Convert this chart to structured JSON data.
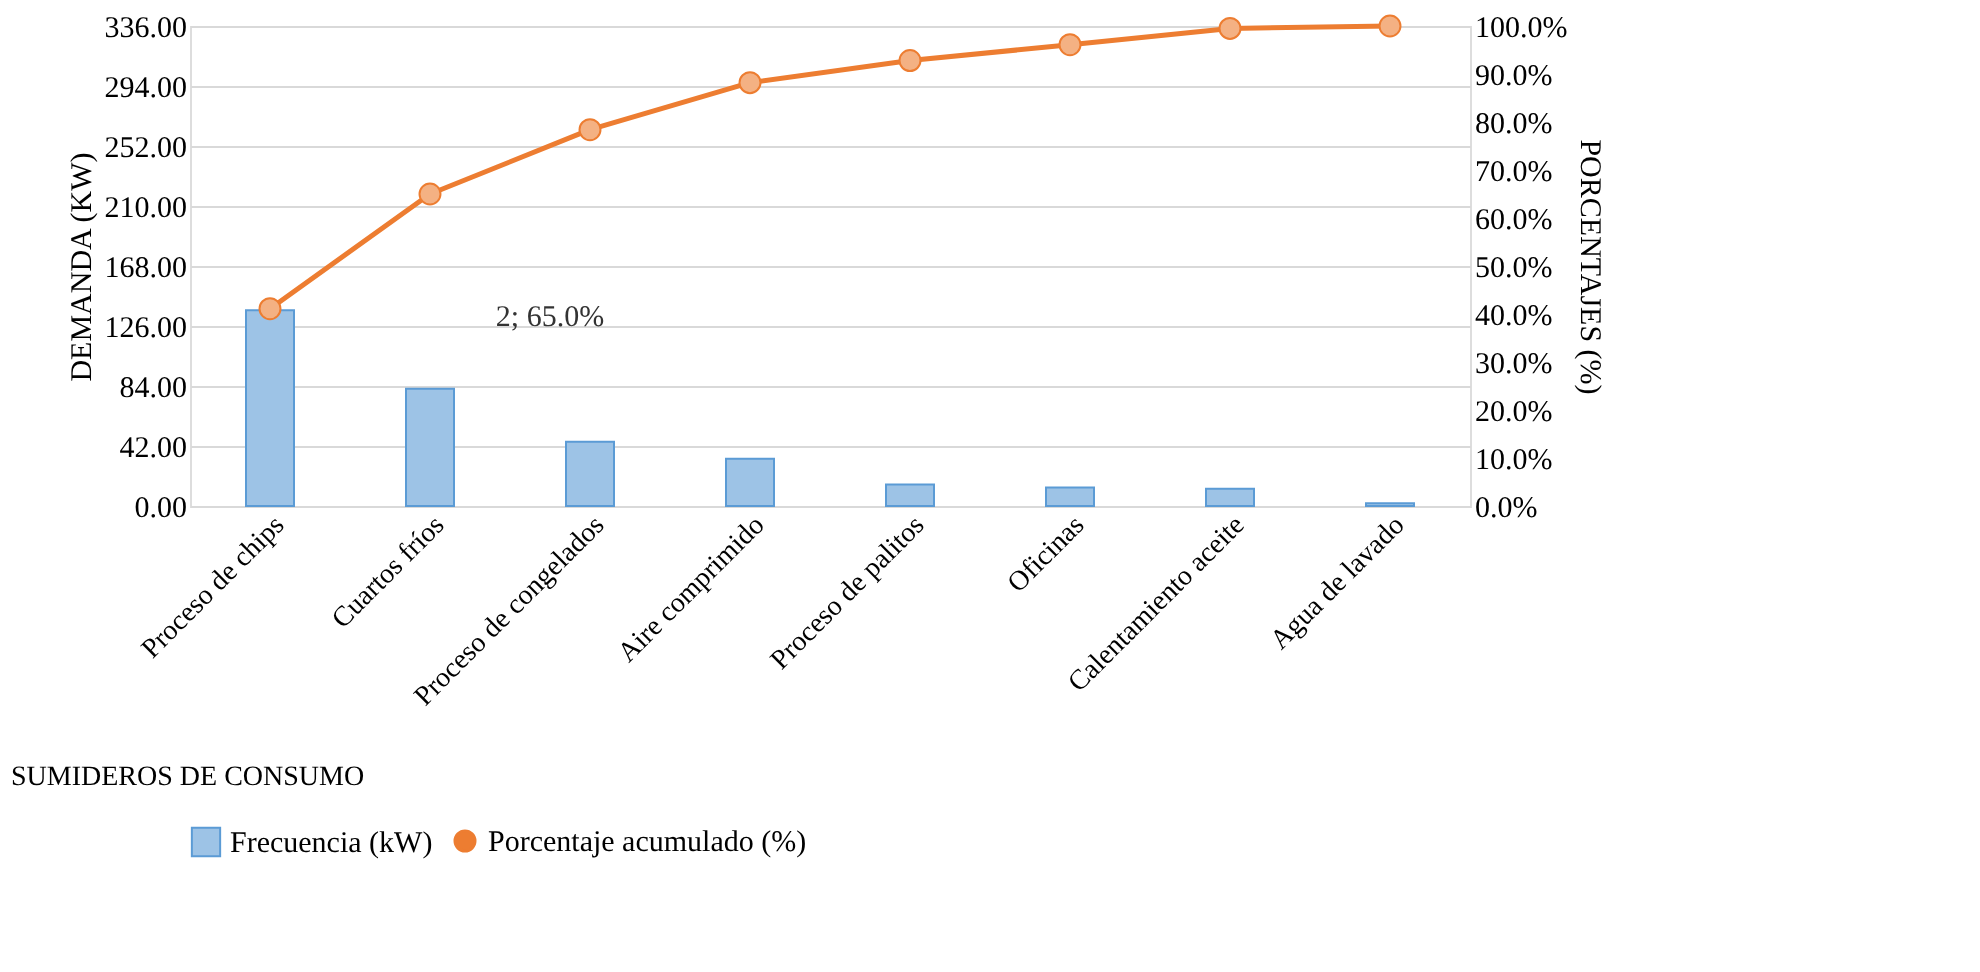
{
  "chart_data": {
    "type": "bar",
    "categories": [
      "Proceso de chips",
      "Cuartos fríos",
      "Proceso de congelados",
      "Aire comprimido",
      "Proceso de palitos",
      "Oficinas",
      "Calentamiento aceite",
      "Agua de lavado"
    ],
    "xlabel": "SUMIDEROS DE CONSUMO",
    "ylabel": "DEMANDA (KW)",
    "y2label": "PORCENTAJES (%)",
    "series": [
      {
        "name": "Frecuencia (kW)",
        "color": "#9dc3e6",
        "values": [
          137,
          82,
          45,
          33,
          15,
          13,
          12,
          2
        ]
      },
      {
        "name": "Porcentaje acumulado (%)",
        "type": "line",
        "axis": "y2",
        "color": "#ed7d31",
        "values": [
          41.1,
          65.0,
          78.4,
          88.2,
          92.8,
          96.1,
          99.5,
          100
        ]
      }
    ],
    "ylim": [
      0,
      336
    ],
    "yticks": [
      {
        "value": 0,
        "label": "0.00"
      },
      {
        "value": 42,
        "label": "42.00"
      },
      {
        "value": 84,
        "label": "84.00"
      },
      {
        "value": 126,
        "label": "126.00"
      },
      {
        "value": 168,
        "label": "168.00"
      },
      {
        "value": 210,
        "label": "210.00"
      },
      {
        "value": 252,
        "label": "252.00"
      },
      {
        "value": 294,
        "label": "294.00"
      },
      {
        "value": 336,
        "label": "336.00"
      }
    ],
    "y2lim": [
      0,
      100
    ],
    "y2ticks": [
      {
        "value": 0,
        "label": "0.0%"
      },
      {
        "value": 10,
        "label": "10.0%"
      },
      {
        "value": 20,
        "label": "20.0%"
      },
      {
        "value": 30,
        "label": "30.0%"
      },
      {
        "value": 40,
        "label": "40.0%"
      },
      {
        "value": 50,
        "label": "50.0%"
      },
      {
        "value": 60,
        "label": "60.0%"
      },
      {
        "value": 70,
        "label": "70.0%"
      },
      {
        "value": 80,
        "label": "80.0%"
      },
      {
        "value": 90,
        "label": "90.0%"
      },
      {
        "value": 100,
        "label": "100.0%"
      }
    ],
    "annotations": [
      "2; 65.0%"
    ],
    "grid": "y",
    "legend": "bottom",
    "marker": "circle",
    "line_style": "solid"
  }
}
